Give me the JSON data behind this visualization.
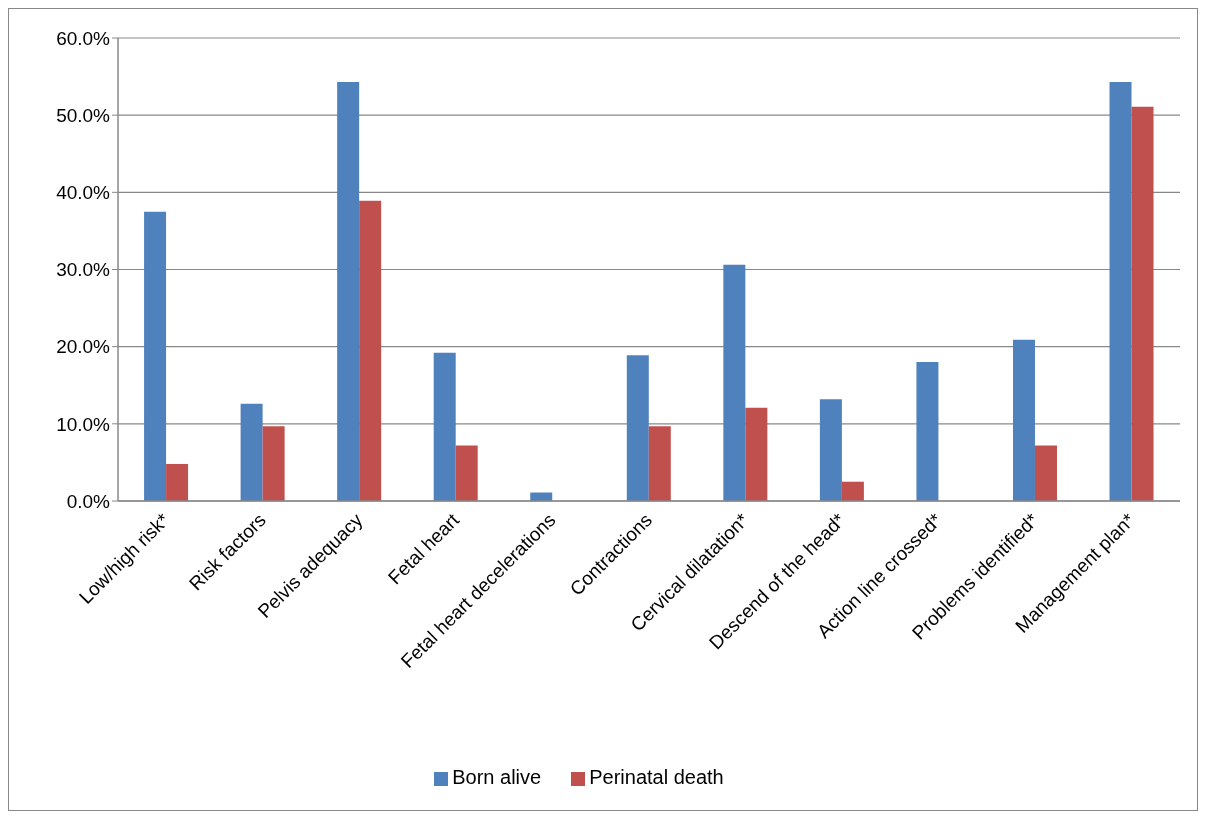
{
  "chart_data": {
    "type": "bar",
    "categories": [
      "Low/high risk*",
      "Risk factors",
      "Pelvis adequacy",
      "Fetal heart",
      "Fetal heart decelerations",
      "Contractions",
      "Cervical dilatation*",
      "Descend of the head*",
      "Action line crossed*",
      "Problems identified*",
      "Management plan*"
    ],
    "series": [
      {
        "name": "Born alive",
        "color": "#4f81bd",
        "values": [
          37.5,
          12.6,
          54.3,
          19.2,
          1.1,
          18.9,
          30.6,
          13.2,
          18.0,
          20.9,
          54.3
        ]
      },
      {
        "name": "Perinatal death",
        "color": "#c0504d",
        "values": [
          4.8,
          9.7,
          38.9,
          7.2,
          0,
          9.7,
          12.1,
          2.5,
          0,
          7.2,
          51.1
        ]
      }
    ],
    "ylim": [
      0,
      60
    ],
    "yticks": [
      {
        "value": 0,
        "label": "0.0%"
      },
      {
        "value": 10,
        "label": "10.0%"
      },
      {
        "value": 20,
        "label": "20.0%"
      },
      {
        "value": 30,
        "label": "30.0%"
      },
      {
        "value": 40,
        "label": "40.0%"
      },
      {
        "value": 50,
        "label": "50.0%"
      },
      {
        "value": 60,
        "label": "60.0%"
      }
    ],
    "grid": "y",
    "legend": "bottom"
  }
}
